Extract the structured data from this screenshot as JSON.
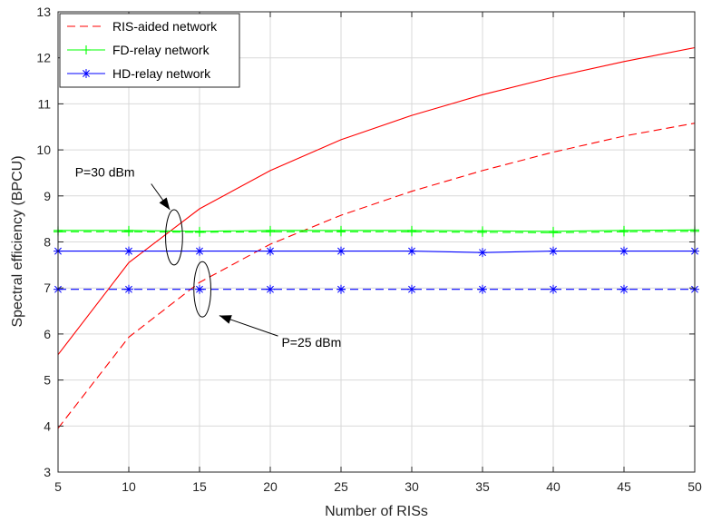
{
  "chart_data": {
    "type": "line",
    "title": "",
    "xlabel": "Number of RISs",
    "ylabel": "Spectral efficiency (BPCU)",
    "xlim": [
      5,
      50
    ],
    "ylim": [
      3,
      13
    ],
    "xticks": [
      5,
      10,
      15,
      20,
      25,
      30,
      35,
      40,
      45,
      50
    ],
    "yticks": [
      3,
      4,
      5,
      6,
      7,
      8,
      9,
      10,
      11,
      12,
      13
    ],
    "grid": true,
    "legend_position": "top-left",
    "x": [
      5,
      10,
      15,
      20,
      25,
      30,
      35,
      40,
      45,
      50
    ],
    "legend": [
      {
        "label": "RIS-aided network",
        "color": "#ff0000",
        "style": "dashed",
        "marker": "none"
      },
      {
        "label": "FD-relay network",
        "color": "#00ff00",
        "style": "solid",
        "marker": "plus"
      },
      {
        "label": "HD-relay network",
        "color": "#0000ff",
        "style": "solid",
        "marker": "asterisk"
      }
    ],
    "series": [
      {
        "group": "RIS-aided network",
        "power": "P=30 dBm",
        "color": "#ff0000",
        "style": "solid",
        "marker": "none",
        "values": [
          5.55,
          7.55,
          8.72,
          9.55,
          10.22,
          10.75,
          11.2,
          11.58,
          11.92,
          12.22
        ]
      },
      {
        "group": "RIS-aided network",
        "power": "P=25 dBm",
        "color": "#ff0000",
        "style": "dashed",
        "marker": "none",
        "values": [
          3.95,
          5.93,
          7.12,
          7.95,
          8.58,
          9.1,
          9.55,
          9.95,
          10.3,
          10.58
        ]
      },
      {
        "group": "FD-relay network",
        "power": "P=30 dBm",
        "color": "#00ff00",
        "style": "solid",
        "marker": "plus",
        "values": [
          8.25,
          8.25,
          8.23,
          8.25,
          8.25,
          8.25,
          8.24,
          8.23,
          8.25,
          8.26
        ]
      },
      {
        "group": "FD-relay network",
        "power": "P=25 dBm",
        "color": "#00ff00",
        "style": "dashed",
        "marker": "plus",
        "values": [
          8.22,
          8.22,
          8.21,
          8.22,
          8.22,
          8.22,
          8.21,
          8.2,
          8.22,
          8.23
        ]
      },
      {
        "group": "HD-relay network",
        "power": "P=30 dBm",
        "color": "#0000ff",
        "style": "solid",
        "marker": "asterisk",
        "values": [
          7.8,
          7.8,
          7.8,
          7.8,
          7.8,
          7.8,
          7.77,
          7.8,
          7.8,
          7.8
        ]
      },
      {
        "group": "HD-relay network",
        "power": "P=25 dBm",
        "color": "#0000ff",
        "style": "dashed",
        "marker": "asterisk",
        "values": [
          6.97,
          6.97,
          6.97,
          6.97,
          6.97,
          6.97,
          6.97,
          6.97,
          6.97,
          6.97
        ]
      }
    ],
    "annotations": [
      {
        "text": "P=30 dBm",
        "ellipse_center": [
          13.2,
          8.1
        ],
        "ellipse_radii": [
          1.2,
          0.6
        ],
        "arrow_to": [
          12.9,
          8.7
        ],
        "text_at": [
          6.2,
          9.42
        ]
      },
      {
        "text": "P=25 dBm",
        "ellipse_center": [
          15.2,
          6.97
        ],
        "ellipse_radii": [
          1.2,
          0.6
        ],
        "arrow_to": [
          16.4,
          6.4
        ],
        "text_at": [
          20.8,
          5.72
        ]
      }
    ]
  }
}
